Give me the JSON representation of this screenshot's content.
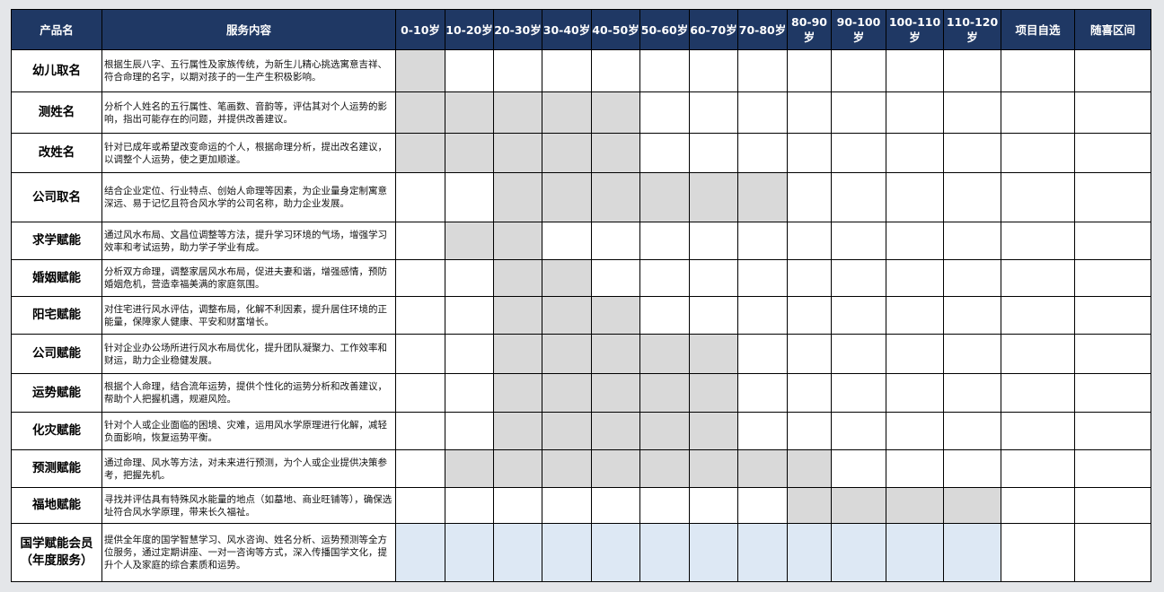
{
  "colors": {
    "header_bg": "#1f3864",
    "header_text": "#ffffff",
    "shade": "#d9d9d9",
    "member_shade": "#dde8f4",
    "background": "#e4e6e9"
  },
  "headers": {
    "product": "产品名",
    "content": "服务内容",
    "ages": [
      "0-10岁",
      "10-20岁",
      "20-30岁",
      "30-40岁",
      "40-50岁",
      "50-60岁",
      "60-70岁",
      "70-80岁",
      "80-90岁",
      "90-100岁",
      "100-110岁",
      "110-120岁"
    ],
    "custom": "项目自选",
    "any": "随喜区间"
  },
  "rows": [
    {
      "name": "幼儿取名",
      "desc": "根据生辰八字、五行属性及家族传统，为新生儿精心挑选寓意吉祥、符合命理的名字，以期对孩子的一生产生积极影响。",
      "ages": [
        0
      ],
      "style": "shade"
    },
    {
      "name": "测姓名",
      "desc": "分析个人姓名的五行属性、笔画数、音韵等，评估其对个人运势的影响，指出可能存在的问题，并提供改善建议。",
      "ages": [
        0,
        1,
        2,
        3,
        4
      ],
      "style": "shade"
    },
    {
      "name": "改姓名",
      "desc": "针对已成年或希望改变命运的个人，根据命理分析，提出改名建议，以调整个人运势，使之更加顺遂。",
      "ages": [
        0,
        1,
        2,
        3,
        4
      ],
      "style": "shade"
    },
    {
      "name": "公司取名",
      "desc": "结合企业定位、行业特点、创始人命理等因素，为企业量身定制寓意深远、易于记忆且符合风水学的公司名称，助力企业发展。",
      "ages": [
        2,
        3,
        4,
        5,
        6,
        7
      ],
      "style": "shade"
    },
    {
      "name": "求学赋能",
      "desc": "通过风水布局、文昌位调整等方法，提升学习环境的气场，增强学习效率和考试运势，助力学子学业有成。",
      "ages": [
        1,
        2
      ],
      "style": "shade"
    },
    {
      "name": "婚姻赋能",
      "desc": "分析双方命理，调整家居风水布局，促进夫妻和谐，增强感情，预防婚姻危机，营造幸福美满的家庭氛围。",
      "ages": [
        2,
        3
      ],
      "style": "shade"
    },
    {
      "name": "阳宅赋能",
      "desc": "对住宅进行风水评估，调整布局，化解不利因素，提升居住环境的正能量，保障家人健康、平安和财富增长。",
      "ages": [
        2,
        3,
        4
      ],
      "style": "shade"
    },
    {
      "name": "公司赋能",
      "desc": "针对企业办公场所进行风水布局优化，提升团队凝聚力、工作效率和财运，助力企业稳健发展。",
      "ages": [
        2,
        3,
        4,
        5,
        6
      ],
      "style": "shade"
    },
    {
      "name": "运势赋能",
      "desc": "根据个人命理，结合流年运势，提供个性化的运势分析和改善建议，帮助个人把握机遇，规避风险。",
      "ages": [
        2,
        3,
        4,
        5,
        6
      ],
      "style": "shade"
    },
    {
      "name": "化灾赋能",
      "desc": "针对个人或企业面临的困境、灾难，运用风水学原理进行化解，减轻负面影响，恢复运势平衡。",
      "ages": [
        2,
        3,
        4,
        5,
        6
      ],
      "style": "shade"
    },
    {
      "name": "预测赋能",
      "desc": "通过命理、风水等方法，对未来进行预测，为个人或企业提供决策参考，把握先机。",
      "ages": [
        1,
        2,
        3,
        4,
        5,
        6,
        7,
        8
      ],
      "style": "shade"
    },
    {
      "name": "福地赋能",
      "desc": "寻找并评估具有特殊风水能量的地点（如墓地、商业旺铺等），确保选址符合风水学原理，带来长久福祉。",
      "ages": [
        8,
        9,
        10,
        11
      ],
      "style": "shade"
    },
    {
      "name": "国学赋能会员（年度服务）",
      "desc": "提供全年度的国学智慧学习、风水咨询、姓名分析、运势预测等全方位服务，通过定期讲座、一对一咨询等方式，深入传播国学文化，提升个人及家庭的综合素质和运势。",
      "ages": [
        0,
        1,
        2,
        3,
        4,
        5,
        6,
        7,
        8,
        9,
        10,
        11
      ],
      "style": "member"
    }
  ]
}
